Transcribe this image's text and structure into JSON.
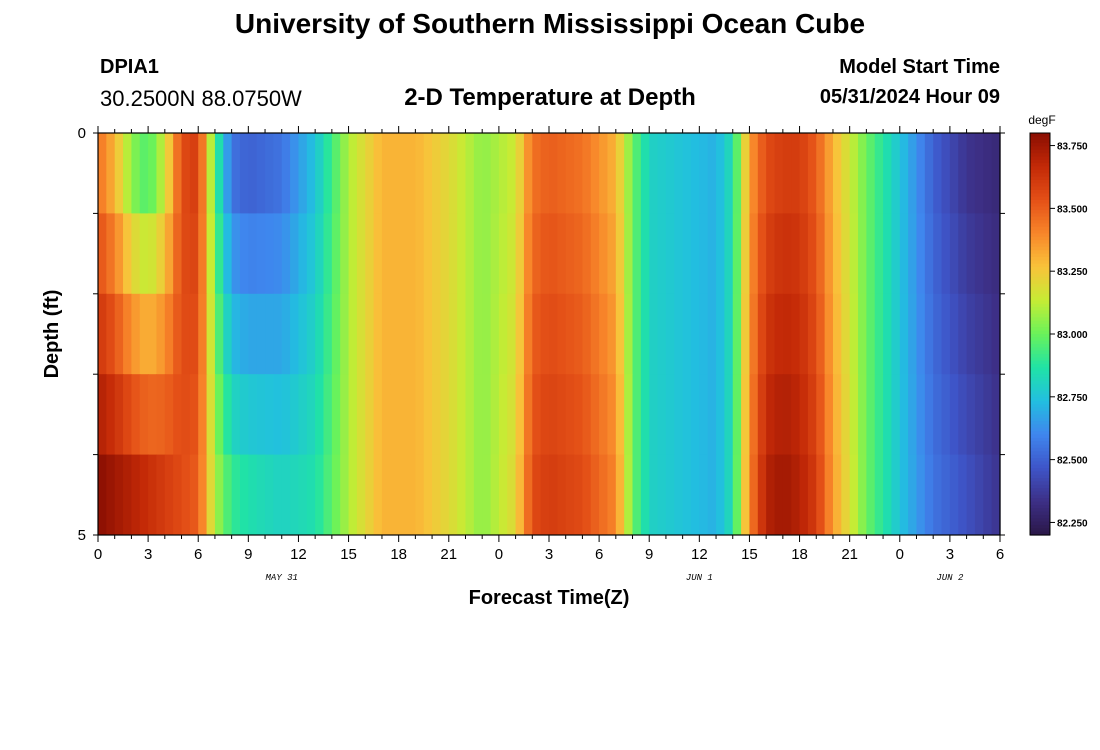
{
  "page": {
    "title_top": "University of Southern Mississippi Ocean Cube",
    "title_bottom": "University of Southern Mississippi Ocean Cube",
    "station_id": "DPIA1",
    "coordinates": "30.2500N  88.0750W",
    "plot_title": "2-D Temperature at Depth",
    "start_label": "Model Start Time",
    "start_value": "05/31/2024 Hour 09"
  },
  "chart_data": {
    "type": "heatmap",
    "xlabel": "Forecast Time(Z)",
    "ylabel": "Depth (ft)",
    "x_start_hour": 0,
    "x_end_hour": 54,
    "x_step_hours": 1,
    "x_tick_hours": [
      0,
      3,
      6,
      9,
      12,
      15,
      18,
      21,
      24,
      27,
      30,
      33,
      36,
      39,
      42,
      45,
      48,
      51,
      54
    ],
    "x_tick_labels": [
      "0",
      "3",
      "6",
      "9",
      "12",
      "15",
      "18",
      "21",
      "0",
      "3",
      "6",
      "9",
      "12",
      "15",
      "18",
      "21",
      "0",
      "3",
      "6"
    ],
    "date_labels": [
      {
        "hour": 11,
        "text": "MAY 31"
      },
      {
        "hour": 36,
        "text": "JUN 1"
      },
      {
        "hour": 51,
        "text": "JUN 2"
      }
    ],
    "y_tick_labels": [
      {
        "depth": 0,
        "text": "0"
      },
      {
        "depth": 5,
        "text": "5"
      }
    ],
    "ylim": [
      0,
      5
    ],
    "depth_layers": 5,
    "colorbar": {
      "unit": "degF",
      "min": 82.2,
      "max": 83.8,
      "ticks": [
        83.75,
        83.5,
        83.25,
        83.0,
        82.75,
        82.5,
        82.25
      ],
      "tick_labels": [
        "83.750",
        "83.500",
        "83.250",
        "83.000",
        "82.750",
        "82.500",
        "82.250"
      ],
      "colors": [
        "#2a1748",
        "#3d2f86",
        "#3e55c8",
        "#3f86ee",
        "#22bfe0",
        "#20e3a5",
        "#6af25a",
        "#c6ec34",
        "#f9c33a",
        "#f8862a",
        "#e45017",
        "#c32907",
        "#8a0e02"
      ]
    },
    "anchors_hours": [
      0,
      1,
      2,
      3,
      4,
      5,
      6,
      7,
      8,
      9,
      11,
      13,
      15,
      17,
      19,
      21,
      23,
      25,
      26,
      27,
      29,
      31,
      32,
      33,
      35,
      37,
      38,
      39,
      40,
      41,
      42,
      43,
      44,
      46,
      48,
      50,
      52,
      54
    ],
    "surface_anchors": [
      83.45,
      83.3,
      83.05,
      82.95,
      83.15,
      83.55,
      83.6,
      82.95,
      82.55,
      82.5,
      82.55,
      82.75,
      83.1,
      83.3,
      83.3,
      83.2,
      83.05,
      83.15,
      83.45,
      83.5,
      83.45,
      83.3,
      83.0,
      82.8,
      82.75,
      82.7,
      82.85,
      83.35,
      83.55,
      83.6,
      83.6,
      83.5,
      83.3,
      83.0,
      82.75,
      82.5,
      82.35,
      82.3
    ],
    "bottom_anchors": [
      83.8,
      83.75,
      83.7,
      83.65,
      83.6,
      83.55,
      83.5,
      83.1,
      82.9,
      82.85,
      82.8,
      82.85,
      83.1,
      83.3,
      83.3,
      83.2,
      83.05,
      83.2,
      83.55,
      83.6,
      83.55,
      83.4,
      83.0,
      82.8,
      82.75,
      82.7,
      82.85,
      83.4,
      83.7,
      83.75,
      83.7,
      83.6,
      83.35,
      83.0,
      82.75,
      82.55,
      82.45,
      82.35
    ]
  }
}
